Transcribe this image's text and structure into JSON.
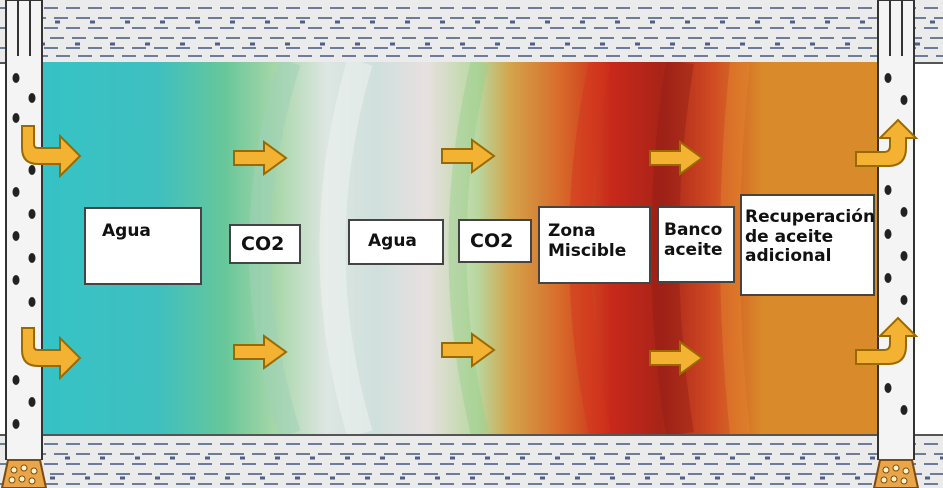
{
  "labels": {
    "agua_1": "Agua",
    "co2_1": "CO2",
    "agua_2": "Agua",
    "co2_2": "CO2",
    "zona_line1": "Zona",
    "zona_line2": "Miscible",
    "banco_line1": "Banco",
    "banco_line2": "aceite",
    "recuperacion_line1": "Recuperación",
    "recuperacion_line2": "de aceite",
    "recuperacion_line3": "adicional"
  },
  "colors": {
    "water": "#3cc4c4",
    "co2_front": "#a9dcc0",
    "pale_band": "#dde8e8",
    "miscible_zone": "#d8502a",
    "oil_bank": "#a32418",
    "reservoir_oil": "#d98a2a",
    "arrow_fill": "#f3b232",
    "arrow_stroke": "#9a6a00",
    "strata": "#ebebeb",
    "strata_lines": "#6f7c99"
  },
  "icons": {
    "flow_arrow": "right-arrow-icon",
    "injection_arrow": "curved-right-arrow-icon",
    "production_arrow": "curved-up-right-arrow-icon",
    "well": "perforated-well-casing"
  }
}
